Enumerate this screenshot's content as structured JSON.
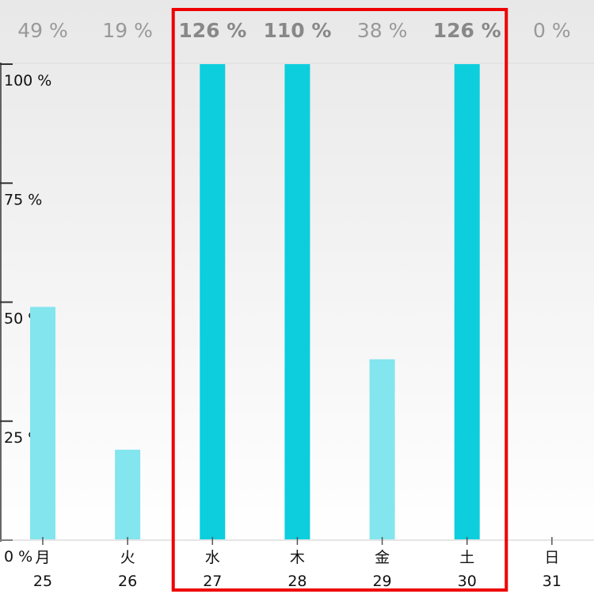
{
  "chart_data": {
    "type": "bar",
    "categories": [
      {
        "weekday": "月",
        "day": "25"
      },
      {
        "weekday": "火",
        "day": "26"
      },
      {
        "weekday": "水",
        "day": "27"
      },
      {
        "weekday": "木",
        "day": "28"
      },
      {
        "weekday": "金",
        "day": "29"
      },
      {
        "weekday": "土",
        "day": "30"
      },
      {
        "weekday": "日",
        "day": "31"
      }
    ],
    "values": [
      49,
      19,
      126,
      110,
      38,
      126,
      0
    ],
    "value_labels": [
      "49 %",
      "19 %",
      "126 %",
      "110 %",
      "38 %",
      "126 %",
      "0 %"
    ],
    "highlighted": [
      false,
      false,
      true,
      true,
      false,
      true,
      false
    ],
    "y_ticks": [
      {
        "value": 0,
        "label": "0 %"
      },
      {
        "value": 25,
        "label": "25 %"
      },
      {
        "value": 50,
        "label": "50 %"
      },
      {
        "value": 75,
        "label": "75 %"
      },
      {
        "value": 100,
        "label": "100 %"
      }
    ],
    "ylim": [
      0,
      100
    ],
    "value_capped_at_max": true,
    "grid": false,
    "title": "",
    "xlabel": "",
    "ylabel": "",
    "selection_box": {
      "first_category_index": 2,
      "last_category_index": 5
    },
    "colors": {
      "bar_highlight": "#0ccedd",
      "bar_normal": "#83e5ee",
      "selection_box": "#ee0000",
      "value_label": "#999999",
      "axis": "#333333"
    }
  }
}
